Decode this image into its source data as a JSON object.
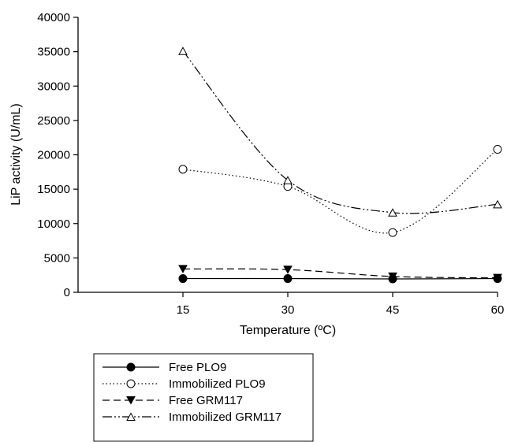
{
  "chart_data": {
    "type": "line",
    "title": "",
    "xlabel": "Temperature (ºC)",
    "ylabel": "LiP activity (U/mL)",
    "x": [
      15,
      30,
      45,
      60
    ],
    "x_ticks": [
      15,
      30,
      45,
      60
    ],
    "xlim": [
      0,
      60
    ],
    "y_ticks": [
      0,
      5000,
      10000,
      15000,
      20000,
      25000,
      30000,
      35000,
      40000
    ],
    "ylim": [
      0,
      40000
    ],
    "grid": false,
    "legend_position": "bottom-left, below plot",
    "series": [
      {
        "name": "Free PLO9",
        "values": [
          2000,
          2000,
          1950,
          2000
        ],
        "marker": "filled-circle",
        "line_style": "solid"
      },
      {
        "name": "Immobilized PLO9",
        "values": [
          17900,
          15400,
          8700,
          20800
        ],
        "marker": "open-circle",
        "line_style": "dotted"
      },
      {
        "name": "Free GRM117",
        "values": [
          3400,
          3300,
          2300,
          2100
        ],
        "marker": "filled-triangle-down",
        "line_style": "dashed"
      },
      {
        "name": "Immobilized GRM117",
        "values": [
          35100,
          16300,
          11600,
          12800
        ],
        "marker": "open-triangle-up",
        "line_style": "dash-dot-dot"
      }
    ]
  }
}
